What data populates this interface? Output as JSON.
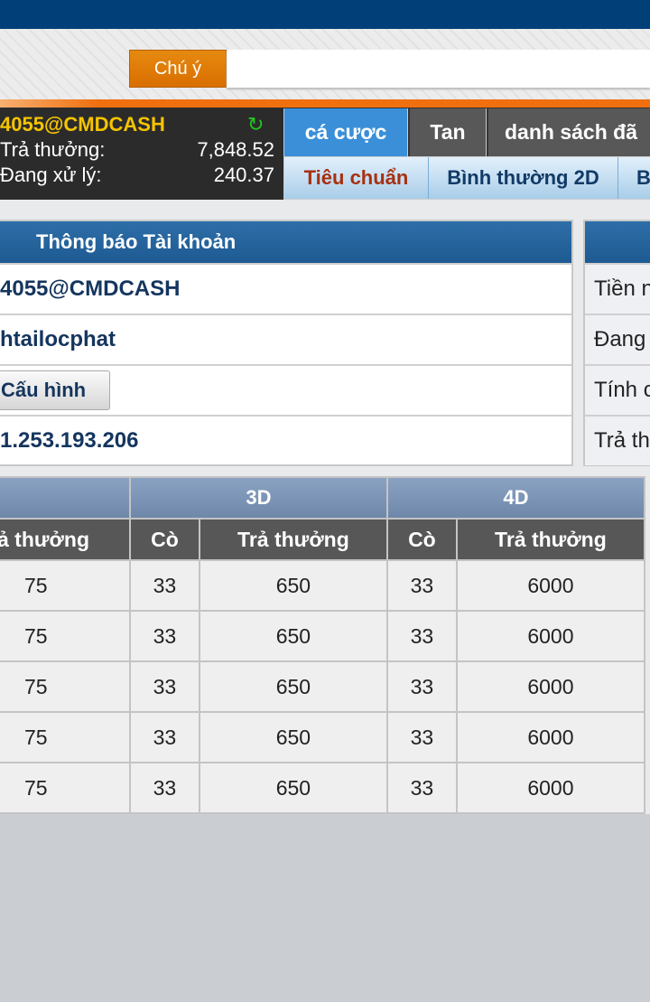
{
  "notice": {
    "button_label": "Chú ý",
    "input_value": ""
  },
  "account": {
    "username": "4055@CMDCASH",
    "payout_label": "Trả thưởng:",
    "payout_value": "7,848.52",
    "pending_label": "Đang xử lý:",
    "pending_value": "240.37",
    "refresh_icon": "refresh-icon"
  },
  "tabs": [
    {
      "label": "cá cược",
      "active": true
    },
    {
      "label": "Tan"
    },
    {
      "label": "danh sách đã"
    }
  ],
  "subtabs": [
    {
      "label": "Tiêu chuẩn",
      "active": true
    },
    {
      "label": "Bình thường 2D"
    },
    {
      "label": "B"
    }
  ],
  "account_info": {
    "title": "Thông báo Tài khoản",
    "rows": [
      "4055@CMDCASH",
      "htailocphat",
      "",
      "1.253.193.206"
    ],
    "config_button": "Cấu hình"
  },
  "right_panel": {
    "rows": [
      "Tiền n",
      "Đang",
      "Tính c",
      "Trả th"
    ]
  },
  "odds_table": {
    "groups": [
      "",
      "3D",
      "4D"
    ],
    "headers": [
      "ả thưởng",
      "Cò",
      "Trả thưởng",
      "Cò",
      "Trả thưởng"
    ],
    "rows": [
      [
        "75",
        "33",
        "650",
        "33",
        "6000"
      ],
      [
        "75",
        "33",
        "650",
        "33",
        "6000"
      ],
      [
        "75",
        "33",
        "650",
        "33",
        "6000"
      ],
      [
        "75",
        "33",
        "650",
        "33",
        "6000"
      ],
      [
        "75",
        "33",
        "650",
        "33",
        "6000"
      ]
    ]
  },
  "colors": {
    "brand": "#003f78",
    "accent": "#e07800",
    "active_tab": "#3a8fd8",
    "active_subtab_text": "#a83010"
  }
}
